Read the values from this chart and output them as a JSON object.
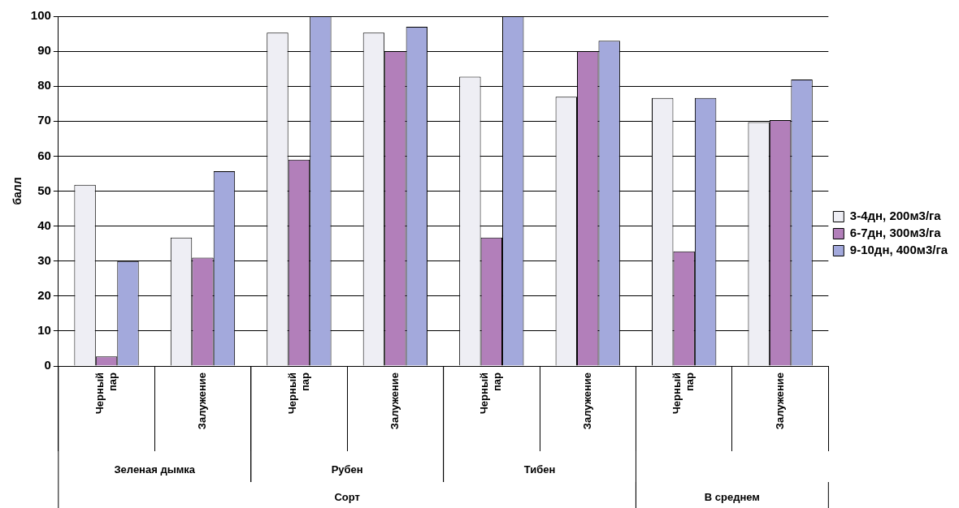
{
  "chart_data": {
    "type": "bar",
    "ylabel": "балл",
    "categories": [
      "Черный пар",
      "Залужение",
      "Черный пар",
      "Залужение",
      "Черный пар",
      "Залужение",
      "Черный пар",
      "Залужение"
    ],
    "series": [
      {
        "name": "3-4дн, 200м3/га",
        "color": "#eeeef4",
        "values": [
          51.8,
          36.7,
          95.3,
          95.3,
          82.7,
          77,
          76.6,
          69.7
        ]
      },
      {
        "name": "6-7дн, 300м3/га",
        "color": "#b27fba",
        "values": [
          2.7,
          31,
          59,
          90,
          36.7,
          90,
          32.8,
          70.3
        ]
      },
      {
        "name": "9-10дн, 400м3/га",
        "color": "#a3a9dc",
        "values": [
          30,
          55.7,
          100,
          97,
          100,
          93,
          76.6,
          81.9
        ]
      }
    ],
    "ylim": [
      0,
      100
    ],
    "yticks": [
      0,
      10,
      20,
      30,
      40,
      50,
      60,
      70,
      80,
      90,
      100
    ],
    "grid": "y",
    "legend": "right",
    "annotations": [
      "Зеленая дымка",
      "Рубен",
      "Тибен",
      "В среднем",
      "Сорт"
    ]
  }
}
